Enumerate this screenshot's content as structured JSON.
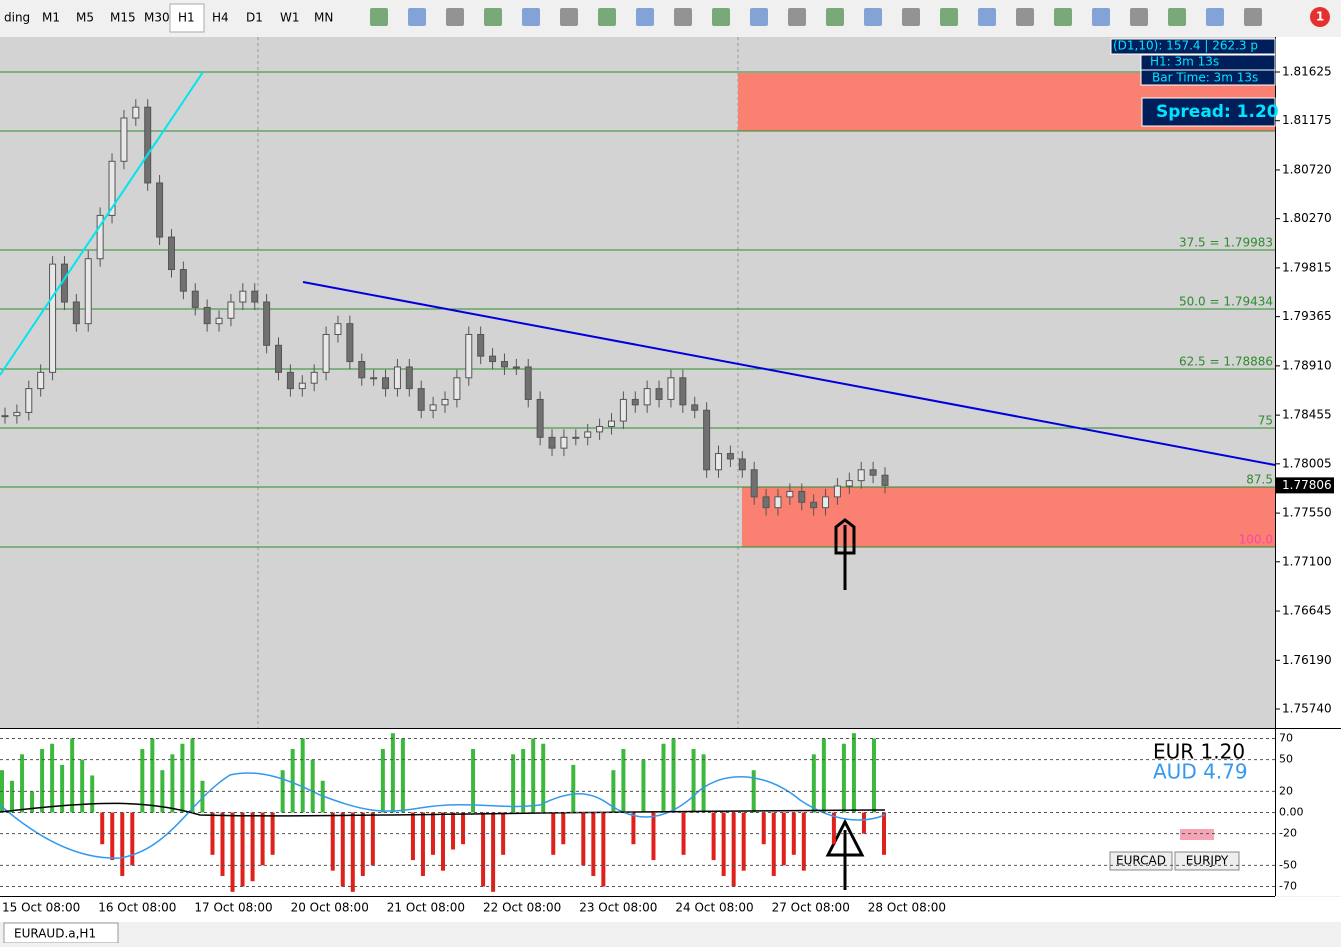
{
  "toolbar": {
    "items": [
      "ding",
      "M1",
      "M5",
      "M15",
      "M30",
      "H1",
      "H4",
      "D1",
      "W1",
      "MN"
    ],
    "badge": "1"
  },
  "info_box": {
    "line1": "(D1,10): 157.4  |  262.3 p",
    "line2": "H1:  3m 13s",
    "line3": "Bar Time: 3m 13s",
    "spread": "Spread: 1.20"
  },
  "fib_labels": [
    "37.5 = 1.79983",
    "50.0  = 1.79434",
    "62.5 = 1.78886",
    "75",
    "87.5",
    "100.0"
  ],
  "price_chart": {
    "ylim": [
      1.7574,
      1.81625
    ],
    "yticks": [
      {
        "value": 1.81625,
        "label": "1.81625"
      },
      {
        "value": 1.81175,
        "label": "1.81175"
      },
      {
        "value": 1.8072,
        "label": "1.80720"
      },
      {
        "value": 1.8027,
        "label": "1.80270"
      },
      {
        "value": 1.79815,
        "label": "1.79815"
      },
      {
        "value": 1.79365,
        "label": "1.79365"
      },
      {
        "value": 1.7891,
        "label": "1.78910"
      },
      {
        "value": 1.78455,
        "label": "1.78455"
      },
      {
        "value": 1.78005,
        "label": "1.78005"
      },
      {
        "value": 1.7755,
        "label": "1.77550"
      },
      {
        "value": 1.771,
        "label": "1.77100"
      },
      {
        "value": 1.76645,
        "label": "1.76645"
      },
      {
        "value": 1.7619,
        "label": "1.76190"
      },
      {
        "value": 1.7574,
        "label": "1.75740"
      }
    ],
    "current_price": {
      "value": 1.77806,
      "label": "1.77806"
    },
    "closes": [
      1.7845,
      1.7848,
      1.787,
      1.7885,
      1.7985,
      1.795,
      1.793,
      1.799,
      1.803,
      1.808,
      1.812,
      1.813,
      1.806,
      1.801,
      1.798,
      1.796,
      1.7945,
      1.793,
      1.7935,
      1.795,
      1.796,
      1.795,
      1.791,
      1.7885,
      1.787,
      1.7875,
      1.7885,
      1.792,
      1.793,
      1.7895,
      1.788,
      1.788,
      1.787,
      1.789,
      1.787,
      1.785,
      1.7855,
      1.786,
      1.788,
      1.792,
      1.79,
      1.7895,
      1.789,
      1.789,
      1.786,
      1.7825,
      1.7815,
      1.7825,
      1.7825,
      1.783,
      1.7835,
      1.784,
      1.786,
      1.7855,
      1.787,
      1.786,
      1.788,
      1.7855,
      1.785,
      1.7795,
      1.781,
      1.7805,
      1.7795,
      1.777,
      1.776,
      1.777,
      1.7775,
      1.7765,
      1.776,
      1.777,
      1.778,
      1.7785,
      1.7795,
      1.779,
      1.77806
    ],
    "dates": [
      "15 Oct 08:00",
      "16 Oct 08:00",
      "17 Oct 08:00",
      "20 Oct 08:00",
      "21 Oct 08:00",
      "22 Oct 08:00",
      "23 Oct 08:00",
      "24 Oct 08:00",
      "27 Oct 08:00",
      "28 Oct 08:00"
    ]
  },
  "oscillator": {
    "ylim": [
      -78,
      78
    ],
    "yticks": [
      70,
      50,
      20,
      {
        "value": 0,
        "label": "0.00"
      },
      -20,
      -50,
      -70
    ],
    "values": [
      40,
      30,
      55,
      20,
      60,
      65,
      45,
      70,
      50,
      35,
      -30,
      -45,
      -60,
      -50,
      60,
      70,
      40,
      55,
      65,
      70,
      30,
      -40,
      -60,
      -75,
      -70,
      -65,
      -50,
      -40,
      40,
      60,
      70,
      50,
      30,
      -55,
      -70,
      -75,
      -60,
      -50,
      60,
      75,
      70,
      -45,
      -60,
      -40,
      -55,
      -35,
      -30,
      60,
      -70,
      -75,
      -40,
      55,
      60,
      70,
      65,
      -40,
      -30,
      45,
      -50,
      -60,
      -70,
      40,
      60,
      -30,
      50,
      -45,
      65,
      70,
      -40,
      60,
      55,
      -45,
      -60,
      -70,
      -55,
      40,
      -30,
      -60,
      -50,
      -40,
      -55,
      55,
      70,
      -30,
      65,
      75,
      -20,
      70,
      -40
    ],
    "eur": "EUR 1.20",
    "aud": "AUD 4.79",
    "buttons": [
      "EURCAD",
      "EURJPY"
    ]
  },
  "tab": "EURAUD.a,H1"
}
